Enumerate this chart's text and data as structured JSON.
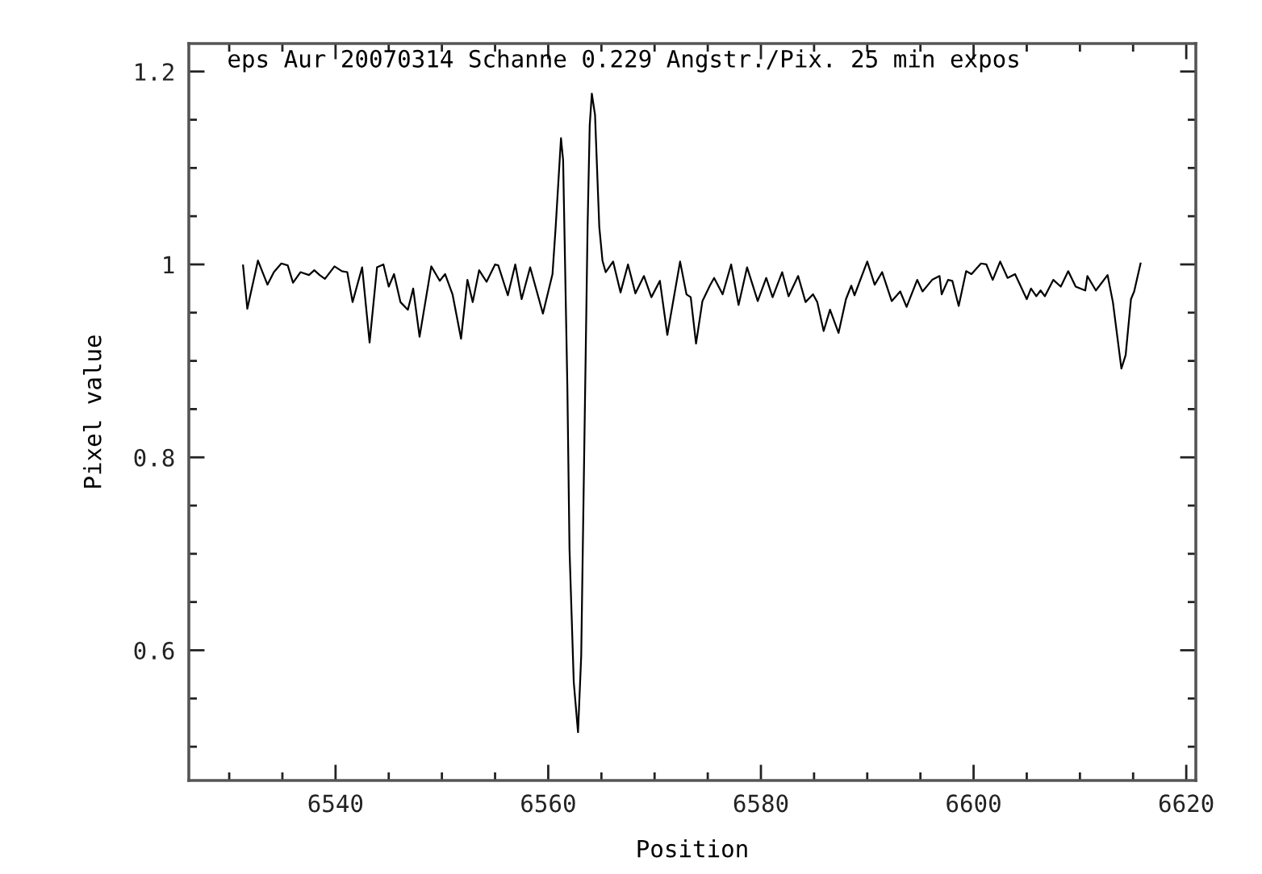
{
  "chart_data": {
    "type": "line",
    "title": "eps Aur 20070314 Schanne 0.229 Angstr./Pix. 25 min expos",
    "xlabel": "Position",
    "ylabel": "Pixel value",
    "xlim": [
      6526.2,
      6620.9
    ],
    "ylim": [
      0.465,
      1.229
    ],
    "xticks": [
      {
        "value": 6530,
        "label": null
      },
      {
        "value": 6535,
        "label": null
      },
      6540,
      {
        "value": 6545,
        "label": null
      },
      {
        "value": 6550,
        "label": null
      },
      {
        "value": 6555,
        "label": null
      },
      6560,
      {
        "value": 6565,
        "label": null
      },
      {
        "value": 6570,
        "label": null
      },
      {
        "value": 6575,
        "label": null
      },
      6580,
      {
        "value": 6585,
        "label": null
      },
      {
        "value": 6590,
        "label": null
      },
      {
        "value": 6595,
        "label": null
      },
      6600,
      {
        "value": 6605,
        "label": null
      },
      {
        "value": 6610,
        "label": null
      },
      {
        "value": 6615,
        "label": null
      },
      6620
    ],
    "yticks": [
      {
        "value": 0.5,
        "label": null
      },
      {
        "value": 0.55,
        "label": null
      },
      0.6,
      {
        "value": 0.65,
        "label": null
      },
      {
        "value": 0.7,
        "label": null
      },
      {
        "value": 0.75,
        "label": null
      },
      0.8,
      {
        "value": 0.85,
        "label": null
      },
      {
        "value": 0.9,
        "label": null
      },
      {
        "value": 0.95,
        "label": null
      },
      1,
      {
        "value": 1.05,
        "label": null
      },
      {
        "value": 1.1,
        "label": null
      },
      {
        "value": 1.15,
        "label": null
      },
      1.2
    ],
    "series": [
      {
        "color": "#000000",
        "x": [
          6531.3,
          6531.7,
          6532.7,
          6533.6,
          6534.2,
          6534.9,
          6535.5,
          6536.0,
          6536.7,
          6537.5,
          6538.0,
          6538.5,
          6539.0,
          6539.9,
          6540.6,
          6541.1,
          6541.6,
          6542.5,
          6543.2,
          6543.9,
          6544.5,
          6545.0,
          6545.5,
          6546.1,
          6546.8,
          6547.3,
          6547.9,
          6549.0,
          6549.8,
          6550.3,
          6551.0,
          6551.8,
          6552.4,
          6552.9,
          6553.5,
          6554.2,
          6555.0,
          6555.3,
          6556.2,
          6556.9,
          6557.5,
          6558.3,
          6559.5,
          6560.4,
          6560.7,
          6561.2,
          6561.4,
          6561.8,
          6562.0,
          6562.4,
          6562.8,
          6563.1,
          6563.4,
          6563.7,
          6563.9,
          6564.1,
          6564.4,
          6564.8,
          6565.1,
          6565.4,
          6566.1,
          6566.8,
          6567.5,
          6568.2,
          6569.0,
          6569.7,
          6570.5,
          6571.2,
          6572.4,
          6573.0,
          6573.4,
          6573.9,
          6574.5,
          6575.2,
          6575.6,
          6576.4,
          6577.2,
          6577.9,
          6578.7,
          6579.7,
          6580.5,
          6581.1,
          6582.0,
          6582.6,
          6583.5,
          6584.2,
          6584.9,
          6585.3,
          6585.9,
          6586.5,
          6587.3,
          6588.0,
          6588.5,
          6588.8,
          6590.0,
          6590.7,
          6591.4,
          6592.3,
          6593.1,
          6593.7,
          6594.7,
          6595.2,
          6596.1,
          6596.8,
          6597.0,
          6597.6,
          6598.0,
          6598.6,
          6599.3,
          6599.8,
          6600.7,
          6601.2,
          6601.8,
          6602.5,
          6603.2,
          6603.9,
          6605.0,
          6605.4,
          6605.9,
          6606.3,
          6606.7,
          6607.5,
          6608.2,
          6608.9,
          6609.6,
          6610.5,
          6610.7,
          6611.5,
          6612.6,
          6613.1,
          6613.9,
          6614.3,
          6614.8,
          6615.1,
          6615.7
        ],
        "values": [
          0.999,
          0.954,
          1.004,
          0.979,
          0.992,
          1.001,
          0.999,
          0.981,
          0.992,
          0.989,
          0.994,
          0.989,
          0.985,
          0.998,
          0.993,
          0.992,
          0.961,
          0.997,
          0.919,
          0.997,
          1.0,
          0.977,
          0.99,
          0.961,
          0.953,
          0.975,
          0.925,
          0.998,
          0.983,
          0.99,
          0.969,
          0.923,
          0.984,
          0.961,
          0.994,
          0.982,
          1.0,
          0.999,
          0.968,
          1.0,
          0.964,
          0.997,
          0.949,
          0.99,
          1.039,
          1.131,
          1.108,
          0.872,
          0.705,
          0.567,
          0.515,
          0.594,
          0.817,
          1.039,
          1.144,
          1.177,
          1.155,
          1.039,
          1.004,
          0.992,
          1.003,
          0.971,
          1.0,
          0.97,
          0.988,
          0.966,
          0.983,
          0.927,
          1.003,
          0.969,
          0.966,
          0.918,
          0.962,
          0.978,
          0.986,
          0.969,
          1.0,
          0.958,
          0.997,
          0.962,
          0.986,
          0.966,
          0.992,
          0.967,
          0.988,
          0.961,
          0.969,
          0.961,
          0.931,
          0.953,
          0.929,
          0.964,
          0.978,
          0.968,
          1.003,
          0.979,
          0.992,
          0.962,
          0.972,
          0.956,
          0.984,
          0.972,
          0.984,
          0.988,
          0.969,
          0.984,
          0.983,
          0.957,
          0.993,
          0.99,
          1.001,
          1.0,
          0.984,
          1.003,
          0.986,
          0.99,
          0.964,
          0.975,
          0.967,
          0.973,
          0.967,
          0.984,
          0.977,
          0.993,
          0.977,
          0.973,
          0.988,
          0.973,
          0.989,
          0.961,
          0.892,
          0.906,
          0.964,
          0.972,
          1.001
        ]
      }
    ]
  }
}
